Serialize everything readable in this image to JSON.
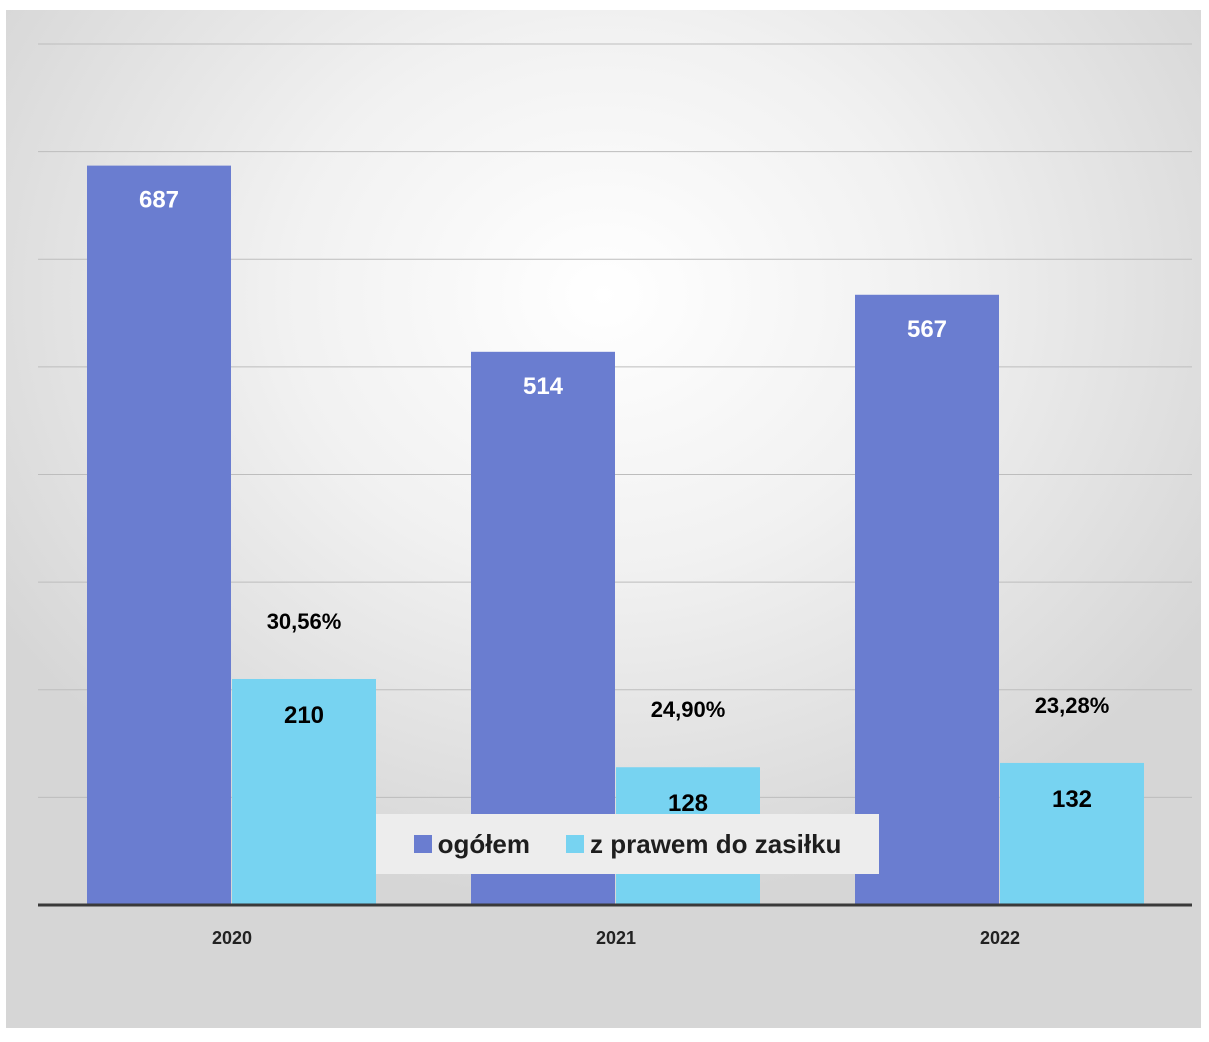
{
  "chart_data": {
    "type": "bar",
    "categories": [
      "2020",
      "2021",
      "2022"
    ],
    "series": [
      {
        "name": "ogółem",
        "values": [
          687,
          514,
          567
        ],
        "color": "#6a7dd0"
      },
      {
        "name": "z prawem do zasiłku",
        "values": [
          210,
          128,
          132
        ],
        "color": "#77d3f1"
      }
    ],
    "percent_labels": [
      "30,56%",
      "24,90%",
      "23,28%"
    ],
    "ylim": [
      0,
      800
    ],
    "grid": true,
    "legend_position": "bottom",
    "title": "",
    "xlabel": "",
    "ylabel": ""
  }
}
